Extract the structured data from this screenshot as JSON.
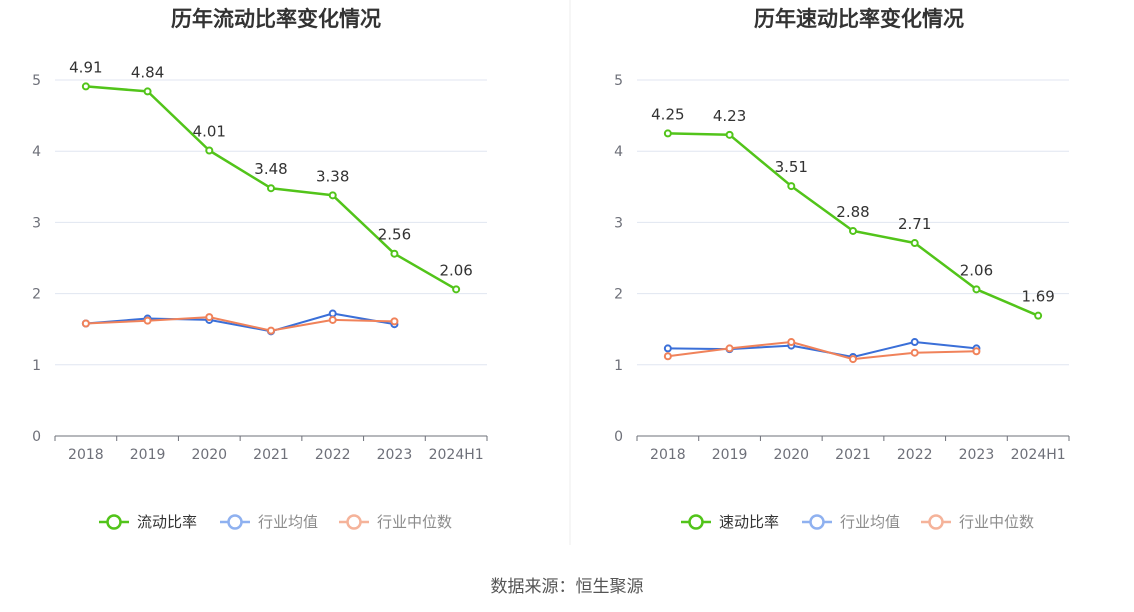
{
  "colors": {
    "primary": "#52c41a",
    "industry_avg": "#3a6fd8",
    "industry_median": "#f0825a",
    "legend_avg": "#8fb1f0",
    "legend_median": "#f5b39a"
  },
  "source_text": "数据来源：恒生聚源",
  "chart_data": [
    {
      "type": "line",
      "title": "历年流动比率变化情况",
      "categories": [
        "2018",
        "2019",
        "2020",
        "2021",
        "2022",
        "2023",
        "2024H1"
      ],
      "ylim": [
        0,
        5
      ],
      "yticks": [
        "0",
        "1",
        "2",
        "3",
        "4",
        "5"
      ],
      "grid": true,
      "legend_position": "bottom",
      "series": [
        {
          "name": "流动比率",
          "values": [
            4.91,
            4.84,
            4.01,
            3.48,
            3.38,
            2.56,
            2.06
          ],
          "labels": [
            "4.91",
            "4.84",
            "4.01",
            "3.48",
            "3.38",
            "2.56",
            "2.06"
          ]
        },
        {
          "name": "行业均值",
          "values": [
            1.58,
            1.65,
            1.63,
            1.47,
            1.72,
            1.57,
            null
          ]
        },
        {
          "name": "行业中位数",
          "values": [
            1.58,
            1.62,
            1.67,
            1.48,
            1.63,
            1.61,
            null
          ]
        }
      ]
    },
    {
      "type": "line",
      "title": "历年速动比率变化情况",
      "categories": [
        "2018",
        "2019",
        "2020",
        "2021",
        "2022",
        "2023",
        "2024H1"
      ],
      "ylim": [
        0,
        5
      ],
      "yticks": [
        "0",
        "1",
        "2",
        "3",
        "4",
        "5"
      ],
      "grid": true,
      "legend_position": "bottom",
      "series": [
        {
          "name": "速动比率",
          "values": [
            4.25,
            4.23,
            3.51,
            2.88,
            2.71,
            2.06,
            1.69
          ],
          "labels": [
            "4.25",
            "4.23",
            "3.51",
            "2.88",
            "2.71",
            "2.06",
            "1.69"
          ]
        },
        {
          "name": "行业均值",
          "values": [
            1.23,
            1.22,
            1.27,
            1.11,
            1.32,
            1.23,
            null
          ]
        },
        {
          "name": "行业中位数",
          "values": [
            1.12,
            1.23,
            1.32,
            1.08,
            1.17,
            1.19,
            null
          ]
        }
      ]
    }
  ]
}
